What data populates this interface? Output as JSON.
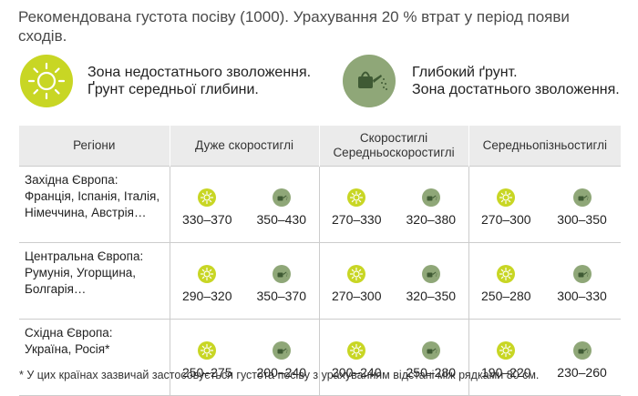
{
  "intro": "Рекомендована густота посіву (1000). Урахування 20 % втрат у період появи сходів.",
  "legend": {
    "dry": {
      "icon": "sun-icon",
      "color": "#c8d624",
      "line1": "Зона недостатнього зволоження.",
      "line2": "Ґрунт середньої глибини."
    },
    "moist": {
      "icon": "watering-can-icon",
      "color": "#8fa778",
      "line1": "Глибокий ґрунт.",
      "line2": "Зона достатнього зволоження."
    }
  },
  "table": {
    "header": {
      "regions": "Регіони",
      "group1": "Дуже скоростиглі",
      "group2_line1": "Скоростиглі",
      "group2_line2": "Середньоскоростиглі",
      "group3": "Середньопізньостиглі"
    },
    "rows": [
      {
        "region_title": "Західна Європа:",
        "region_countries_1": "Франція, Іспанія, Італія,",
        "region_countries_2": "Німеччина, Австрія…",
        "values": [
          "330–370",
          "350–430",
          "270–330",
          "320–380",
          "270–300",
          "300–350"
        ]
      },
      {
        "region_title": "Центральна Європа:",
        "region_countries_1": "Румунія, Угорщина,",
        "region_countries_2": "Болгарія…",
        "values": [
          "290–320",
          "350–370",
          "270–300",
          "320–350",
          "250–280",
          "300–330"
        ]
      },
      {
        "region_title": "Східна Європа:",
        "region_countries_1": "Україна, Росія*",
        "region_countries_2": "",
        "values": [
          "250–275",
          "200–240",
          "200–240",
          "250–280",
          "190–220",
          "230–260"
        ]
      }
    ]
  },
  "footnote": "* У цих країнах зазвичай застосовується густота посіву з урахуванням відстані між рядками 80 см."
}
